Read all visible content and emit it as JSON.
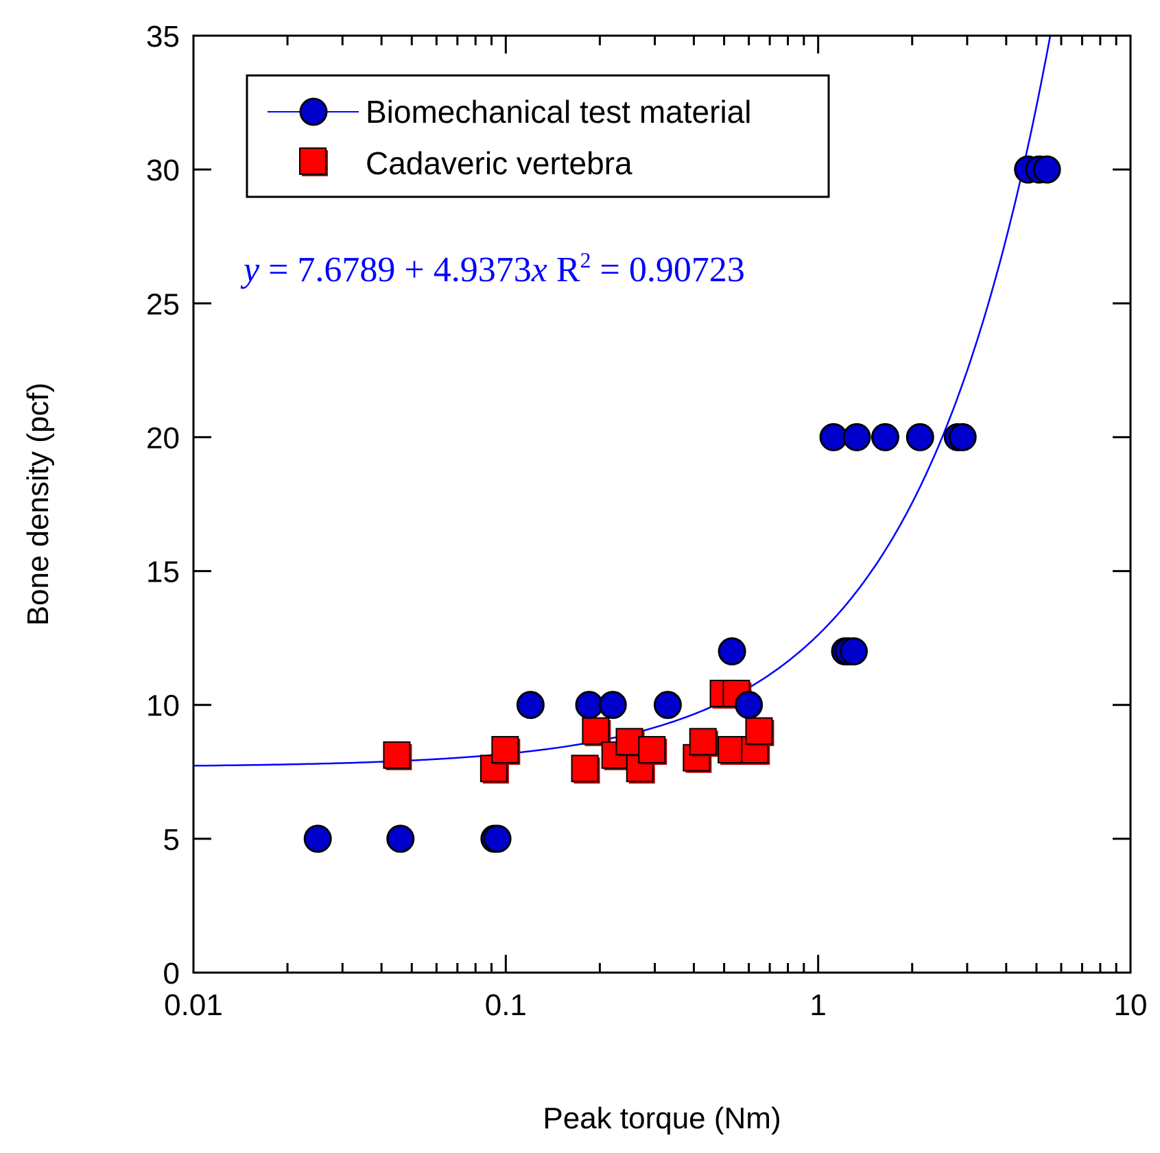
{
  "chart_data": {
    "type": "scatter",
    "xscale": "log",
    "xlim": [
      0.01,
      10
    ],
    "ylim": [
      0,
      35
    ],
    "xlabel": "Peak torque (Nm)",
    "ylabel": "Bone density (pcf)",
    "xticks": [
      "0.01",
      "0.1",
      "1",
      "10"
    ],
    "yticks": [
      "0",
      "5",
      "10",
      "15",
      "20",
      "25",
      "30",
      "35"
    ],
    "colors": {
      "blue": "#0000cc",
      "red": "#ff0000",
      "fit": "#0000ff"
    },
    "fit": {
      "label_y": "y",
      "label_mid": " = 7.6789 + 4.9373",
      "label_x": "x",
      "label_r": "  R",
      "label_sup": "2",
      "label_end": " = 0.90723",
      "intercept": 7.6789,
      "slope": 4.9373
    },
    "series": [
      {
        "name": "Biomechanical test material",
        "marker": "circle",
        "points": [
          [
            0.025,
            5
          ],
          [
            0.046,
            5
          ],
          [
            0.092,
            5
          ],
          [
            0.094,
            5
          ],
          [
            0.12,
            10
          ],
          [
            0.185,
            10
          ],
          [
            0.22,
            10
          ],
          [
            0.33,
            10
          ],
          [
            0.6,
            10
          ],
          [
            0.53,
            12
          ],
          [
            1.22,
            12
          ],
          [
            1.25,
            12
          ],
          [
            1.3,
            12
          ],
          [
            1.12,
            20
          ],
          [
            1.33,
            20
          ],
          [
            1.64,
            20
          ],
          [
            2.12,
            20
          ],
          [
            2.8,
            20
          ],
          [
            2.9,
            20
          ],
          [
            4.7,
            30
          ],
          [
            5.1,
            30
          ],
          [
            5.4,
            30
          ]
        ]
      },
      {
        "name": "Cadaveric vertebra",
        "marker": "square",
        "points": [
          [
            0.045,
            8.1
          ],
          [
            0.092,
            7.6
          ],
          [
            0.1,
            8.3
          ],
          [
            0.18,
            7.6
          ],
          [
            0.195,
            9.0
          ],
          [
            0.225,
            8.1
          ],
          [
            0.25,
            8.6
          ],
          [
            0.27,
            7.6
          ],
          [
            0.295,
            8.3
          ],
          [
            0.41,
            8.0
          ],
          [
            0.43,
            8.6
          ],
          [
            0.5,
            10.4
          ],
          [
            0.55,
            10.4
          ],
          [
            0.53,
            8.3
          ],
          [
            0.63,
            8.3
          ],
          [
            0.65,
            9.0
          ]
        ]
      }
    ]
  }
}
